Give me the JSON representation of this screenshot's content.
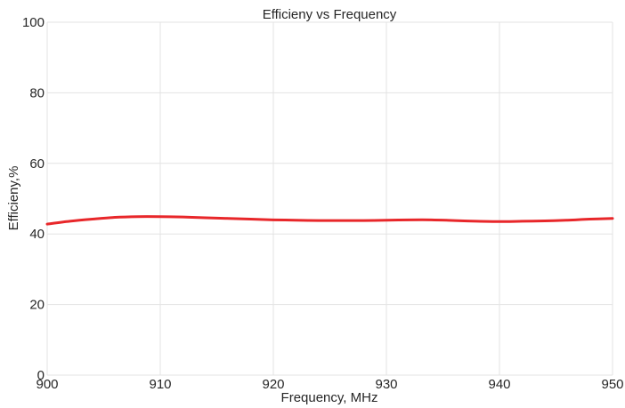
{
  "chart_data": {
    "type": "line",
    "title": "Efficieny vs Frequency",
    "xlabel": "Frequency, MHz",
    "ylabel": "Efficieny,%",
    "xlim": [
      900,
      950
    ],
    "ylim": [
      0,
      100
    ],
    "xticks": [
      900,
      910,
      920,
      930,
      940,
      950
    ],
    "yticks": [
      0,
      20,
      40,
      60,
      80,
      100
    ],
    "grid": true,
    "series": [
      {
        "color": "#e8272a",
        "x": [
          900,
          902,
          904,
          906,
          908,
          910,
          912,
          914,
          916,
          918,
          920,
          922,
          924,
          926,
          928,
          930,
          932,
          934,
          936,
          938,
          940,
          942,
          944,
          946,
          948,
          950
        ],
        "y": [
          42.8,
          43.6,
          44.2,
          44.7,
          44.9,
          44.9,
          44.8,
          44.6,
          44.4,
          44.2,
          44.0,
          43.9,
          43.8,
          43.8,
          43.8,
          43.9,
          44.0,
          44.0,
          43.8,
          43.6,
          43.5,
          43.6,
          43.7,
          43.9,
          44.2,
          44.4
        ]
      }
    ]
  }
}
